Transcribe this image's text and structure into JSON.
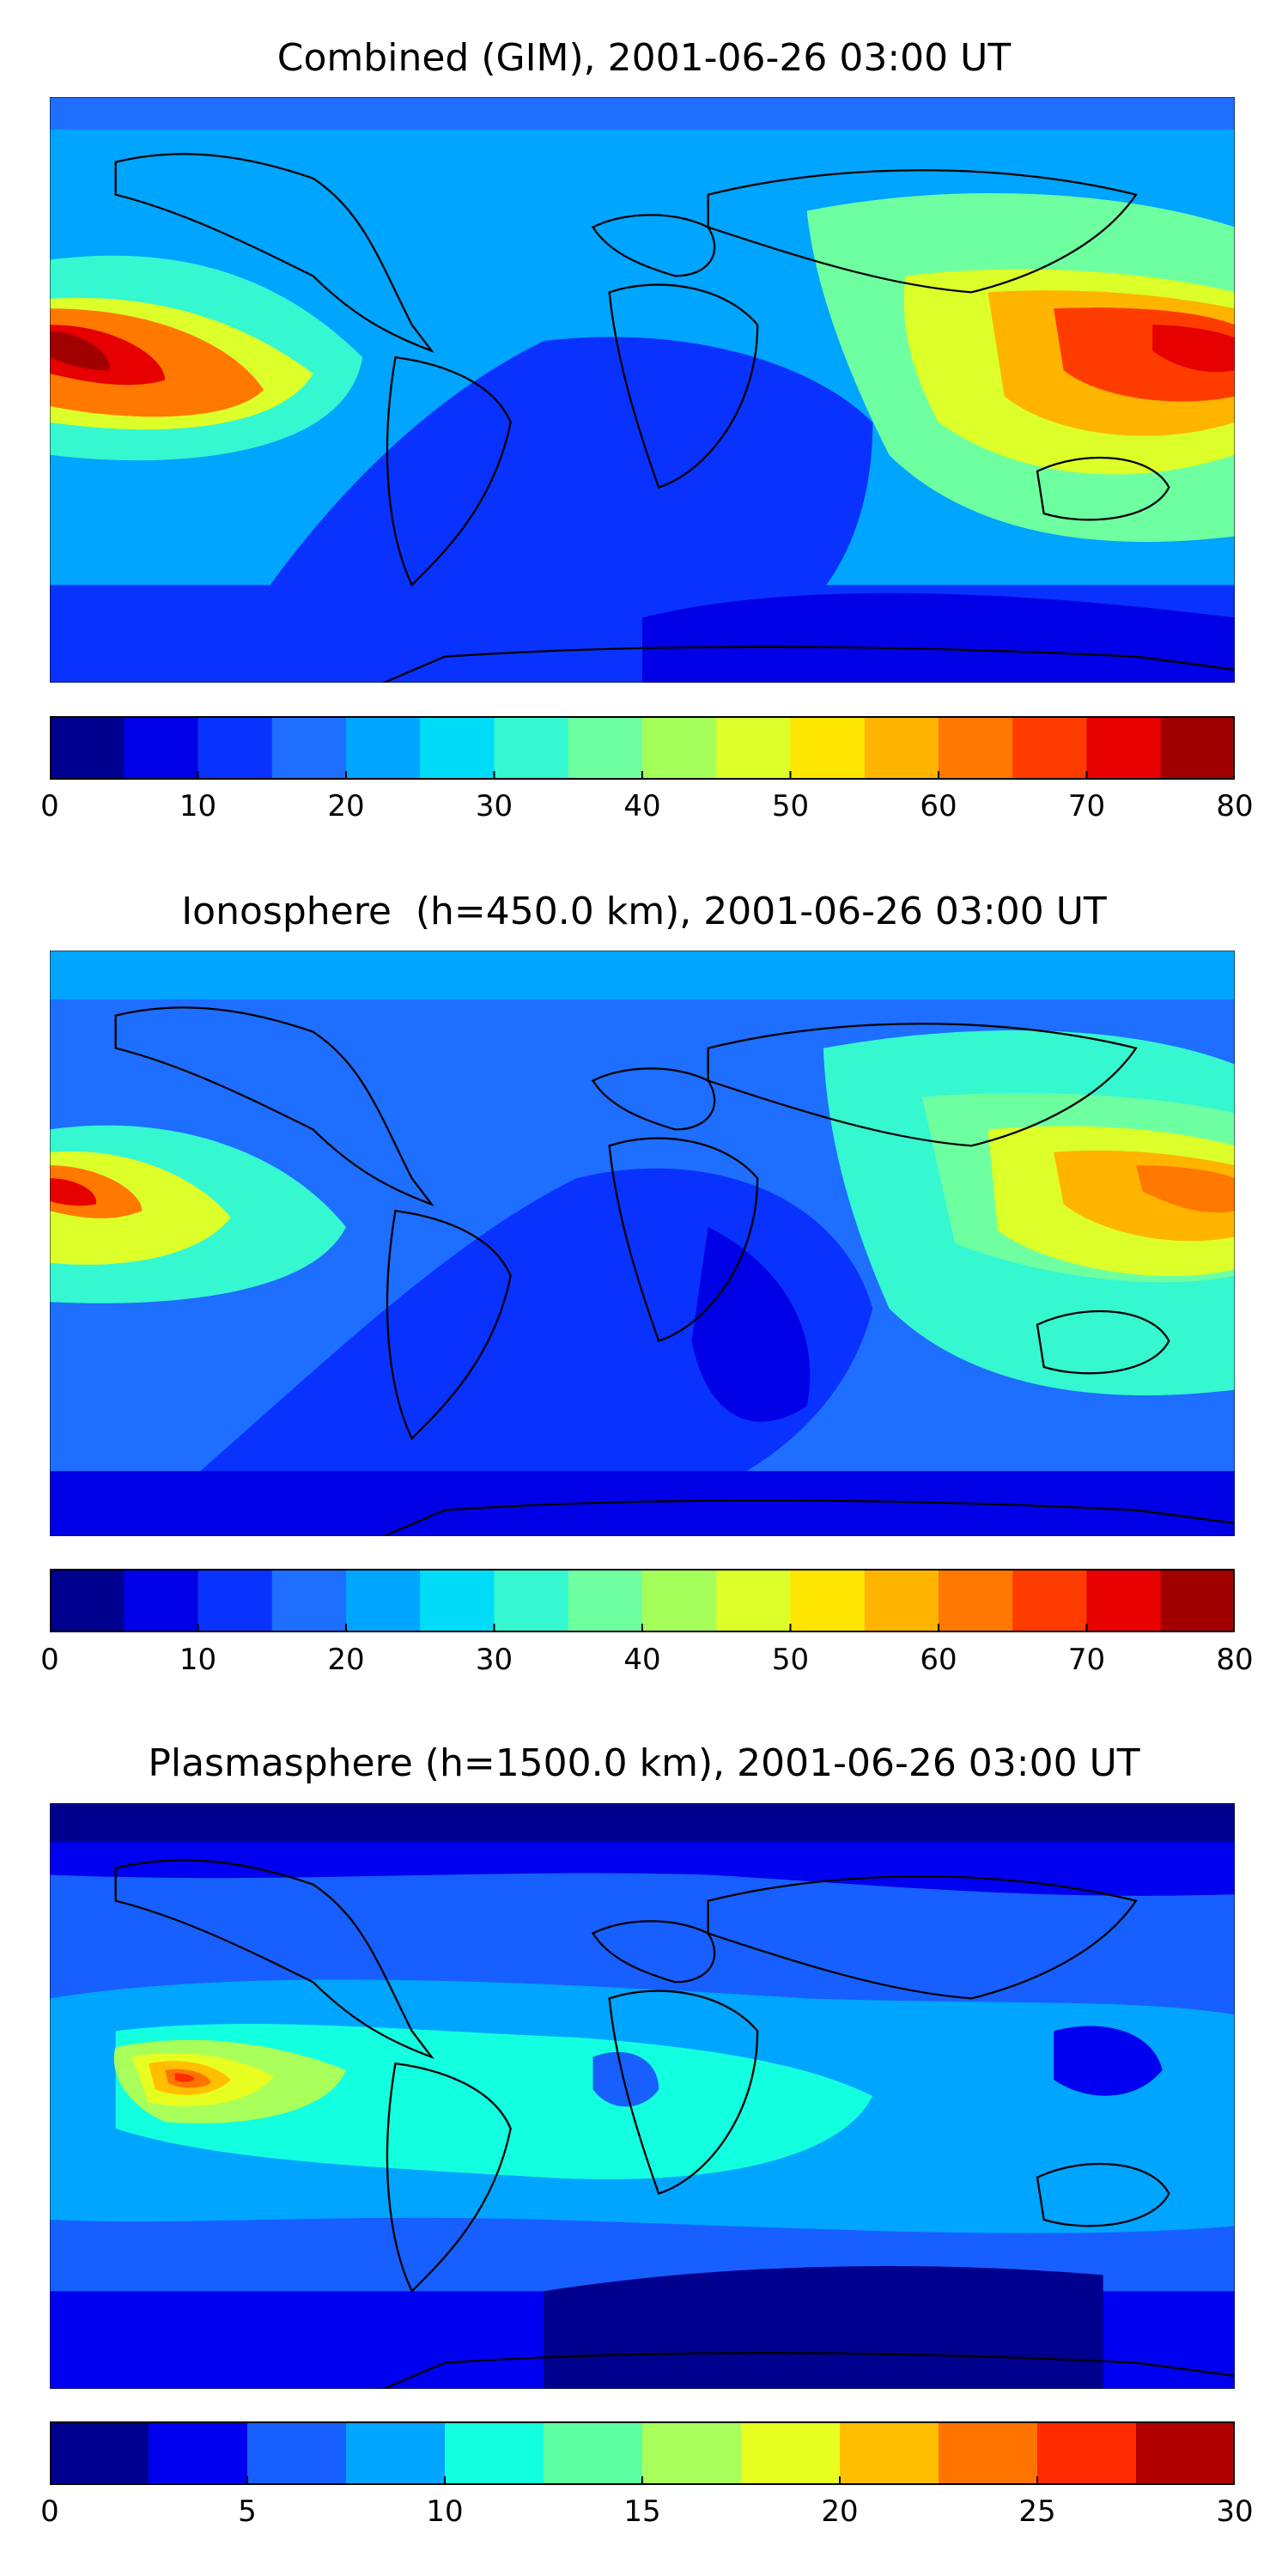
{
  "figure": {
    "panels": [
      {
        "title": "Combined (GIM), 2001-06-26 03:00 UT",
        "colorbar": {
          "levels": [
            0,
            5,
            10,
            15,
            20,
            25,
            30,
            35,
            40,
            45,
            50,
            55,
            60,
            65,
            70,
            75,
            80
          ],
          "tick_labels": [
            "0",
            "10",
            "20",
            "30",
            "40",
            "50",
            "60",
            "70",
            "80"
          ]
        }
      },
      {
        "title": "Ionosphere  (h=450.0 km), 2001-06-26 03:00 UT",
        "colorbar": {
          "levels": [
            0,
            5,
            10,
            15,
            20,
            25,
            30,
            35,
            40,
            45,
            50,
            55,
            60,
            65,
            70,
            75,
            80
          ],
          "tick_labels": [
            "0",
            "10",
            "20",
            "30",
            "40",
            "50",
            "60",
            "70",
            "80"
          ]
        }
      },
      {
        "title": "Plasmasphere (h=1500.0 km), 2001-06-26 03:00 UT",
        "colorbar": {
          "levels": [
            0,
            2.5,
            5,
            7.5,
            10,
            12.5,
            15,
            17.5,
            20,
            22.5,
            25,
            27.5,
            30
          ],
          "tick_labels": [
            "0",
            "5",
            "10",
            "15",
            "20",
            "25",
            "30"
          ]
        }
      }
    ]
  },
  "colormap": {
    "16": [
      "#00008f",
      "#0000e6",
      "#0a32ff",
      "#1e6eff",
      "#00a5ff",
      "#00dcf7",
      "#35f7d0",
      "#6effa0",
      "#a5ff5a",
      "#dcff2a",
      "#ffe600",
      "#ffb400",
      "#ff7800",
      "#ff3c00",
      "#e60000",
      "#a00000"
    ],
    "12": [
      "#00008f",
      "#0000f0",
      "#1760ff",
      "#00a5ff",
      "#12ffe0",
      "#5cffa0",
      "#a8ff5a",
      "#e6ff20",
      "#ffbf00",
      "#ff7400",
      "#ff2a00",
      "#b00000"
    ]
  }
}
